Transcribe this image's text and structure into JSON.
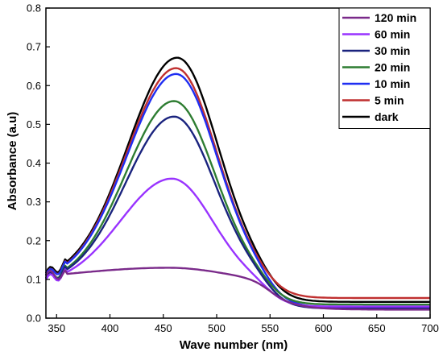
{
  "chart_data": {
    "type": "line",
    "title": "",
    "xlabel": "Wave number (nm)",
    "ylabel": "Absorbance (a.u)",
    "xlim": [
      340,
      700
    ],
    "ylim": [
      0,
      0.8
    ],
    "xticks": [
      350,
      400,
      450,
      500,
      550,
      600,
      650,
      700
    ],
    "yticks": [
      0.0,
      0.1,
      0.2,
      0.3,
      0.4,
      0.5,
      0.6,
      0.7,
      0.8
    ],
    "grid": false,
    "legend_position": "top-right",
    "series": [
      {
        "name": "120 min",
        "color": "#7a2a8a",
        "peak_x": 455,
        "peak_y": 0.13,
        "base_y": 0.09,
        "tail_y": 0.022,
        "sigma_l": 95,
        "sigma_r": 55
      },
      {
        "name": "60 min",
        "color": "#9933ff",
        "peak_x": 458,
        "peak_y": 0.36,
        "base_y": 0.085,
        "tail_y": 0.03,
        "sigma_l": 48,
        "sigma_r": 38
      },
      {
        "name": "30 min",
        "color": "#1a237e",
        "peak_x": 460,
        "peak_y": 0.52,
        "base_y": 0.09,
        "tail_y": 0.025,
        "sigma_l": 45,
        "sigma_r": 38
      },
      {
        "name": "20 min",
        "color": "#2e7d32",
        "peak_x": 460,
        "peak_y": 0.56,
        "base_y": 0.09,
        "tail_y": 0.035,
        "sigma_l": 45,
        "sigma_r": 38
      },
      {
        "name": "10 min",
        "color": "#1f2ef2",
        "peak_x": 462,
        "peak_y": 0.63,
        "base_y": 0.095,
        "tail_y": 0.028,
        "sigma_l": 46,
        "sigma_r": 38
      },
      {
        "name": "5 min",
        "color": "#c03030",
        "peak_x": 462,
        "peak_y": 0.645,
        "base_y": 0.095,
        "tail_y": 0.052,
        "sigma_l": 46,
        "sigma_r": 38
      },
      {
        "name": "dark",
        "color": "#000000",
        "peak_x": 463,
        "peak_y": 0.672,
        "base_y": 0.1,
        "tail_y": 0.042,
        "sigma_l": 46,
        "sigma_r": 38
      }
    ]
  }
}
